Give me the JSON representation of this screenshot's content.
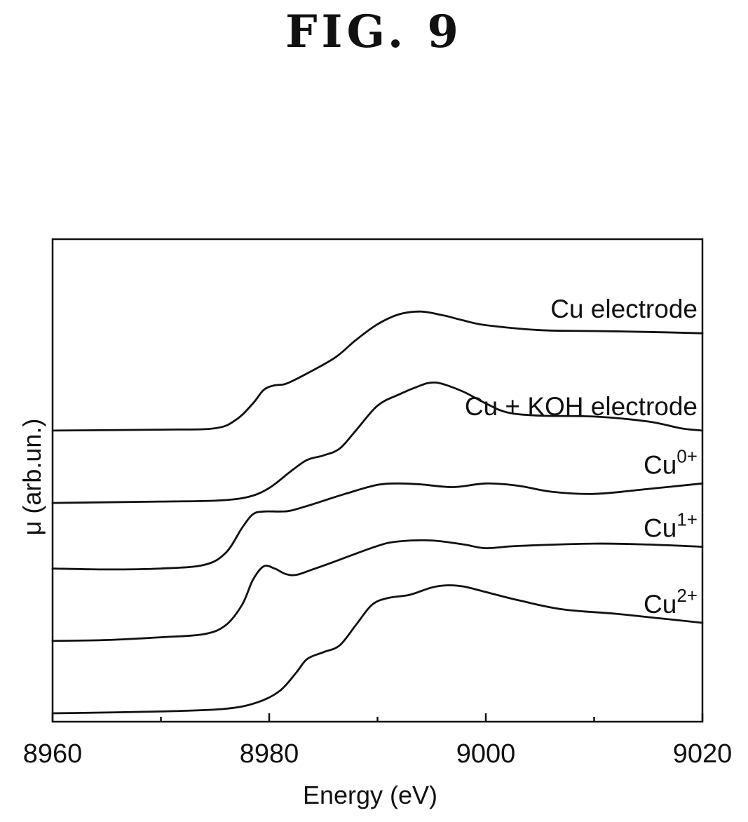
{
  "figure_label": "FIG. 9",
  "chart_data": {
    "type": "line",
    "xlabel": "Energy (eV)",
    "ylabel": "μ (arb.un.)",
    "xlim": [
      8960,
      9020
    ],
    "x_ticks": [
      8960,
      8980,
      9000,
      9020
    ],
    "x_ticks_minor": [
      8970,
      8990,
      9010
    ],
    "y_ticks": [],
    "ylim": [
      0,
      1
    ],
    "grid": false,
    "series": [
      {
        "name": "Cu electrode",
        "label_base": "Cu electrode",
        "label_sup": "",
        "x": [
          8960,
          8970,
          8975,
          8977,
          8978.5,
          8979.5,
          8980.5,
          8981.5,
          8983,
          8986,
          8988,
          8990,
          8992,
          8994,
          8996,
          8998,
          9000,
          9005,
          9010,
          9015,
          9020
        ],
        "y": [
          0.625,
          0.627,
          0.63,
          0.65,
          0.685,
          0.715,
          0.725,
          0.728,
          0.745,
          0.785,
          0.825,
          0.86,
          0.882,
          0.888,
          0.88,
          0.868,
          0.858,
          0.847,
          0.845,
          0.843,
          0.84
        ]
      },
      {
        "name": "Cu + KOH electrode",
        "label_base": "Cu + KOH electrode",
        "label_sup": "",
        "x": [
          8960,
          8970,
          8975,
          8978,
          8980,
          8982,
          8983.5,
          8985,
          8986.5,
          8988,
          8990,
          8992,
          8994,
          8995,
          8996,
          8998,
          9000,
          9002,
          9005,
          9010,
          9015,
          9018,
          9020
        ],
        "y": [
          0.465,
          0.468,
          0.47,
          0.478,
          0.498,
          0.535,
          0.56,
          0.57,
          0.585,
          0.625,
          0.68,
          0.705,
          0.725,
          0.731,
          0.728,
          0.71,
          0.685,
          0.665,
          0.658,
          0.656,
          0.645,
          0.63,
          0.625
        ]
      },
      {
        "name": "Cu0+",
        "label_base": "Cu",
        "label_sup": "0+",
        "x": [
          8960,
          8965,
          8970,
          8974,
          8976,
          8977.5,
          8978.5,
          8979.5,
          8981,
          8982,
          8984,
          8987,
          8990,
          8992,
          8994,
          8997,
          9000,
          9003,
          9006,
          9010,
          9015,
          9020
        ],
        "y": [
          0.32,
          0.318,
          0.32,
          0.328,
          0.355,
          0.41,
          0.44,
          0.446,
          0.446,
          0.448,
          0.462,
          0.485,
          0.505,
          0.508,
          0.506,
          0.5,
          0.508,
          0.503,
          0.49,
          0.485,
          0.496,
          0.508
        ]
      },
      {
        "name": "Cu1+",
        "label_base": "Cu",
        "label_sup": "1+",
        "x": [
          8960,
          8965,
          8970,
          8974,
          8976,
          8977.5,
          8978.5,
          8979.5,
          8980.5,
          8981.5,
          8982.5,
          8984,
          8986,
          8990,
          8992,
          8995,
          8998,
          9000,
          9003,
          9010,
          9015,
          9020
        ],
        "y": [
          0.16,
          0.162,
          0.168,
          0.175,
          0.195,
          0.24,
          0.295,
          0.325,
          0.32,
          0.308,
          0.306,
          0.318,
          0.335,
          0.37,
          0.38,
          0.382,
          0.373,
          0.365,
          0.37,
          0.375,
          0.373,
          0.368
        ]
      },
      {
        "name": "Cu2+",
        "label_base": "Cu",
        "label_sup": "2+",
        "x": [
          8960,
          8970,
          8976,
          8979,
          8981,
          8982.5,
          8983.5,
          8985,
          8986.5,
          8988,
          8989.5,
          8991,
          8993,
          8995,
          8996.5,
          8998,
          9000,
          9003,
          9007,
          9012,
          9016,
          9020
        ],
        "y": [
          0.0,
          0.004,
          0.01,
          0.025,
          0.05,
          0.09,
          0.12,
          0.135,
          0.15,
          0.195,
          0.24,
          0.255,
          0.262,
          0.278,
          0.283,
          0.28,
          0.268,
          0.25,
          0.23,
          0.22,
          0.21,
          0.2
        ]
      }
    ]
  }
}
